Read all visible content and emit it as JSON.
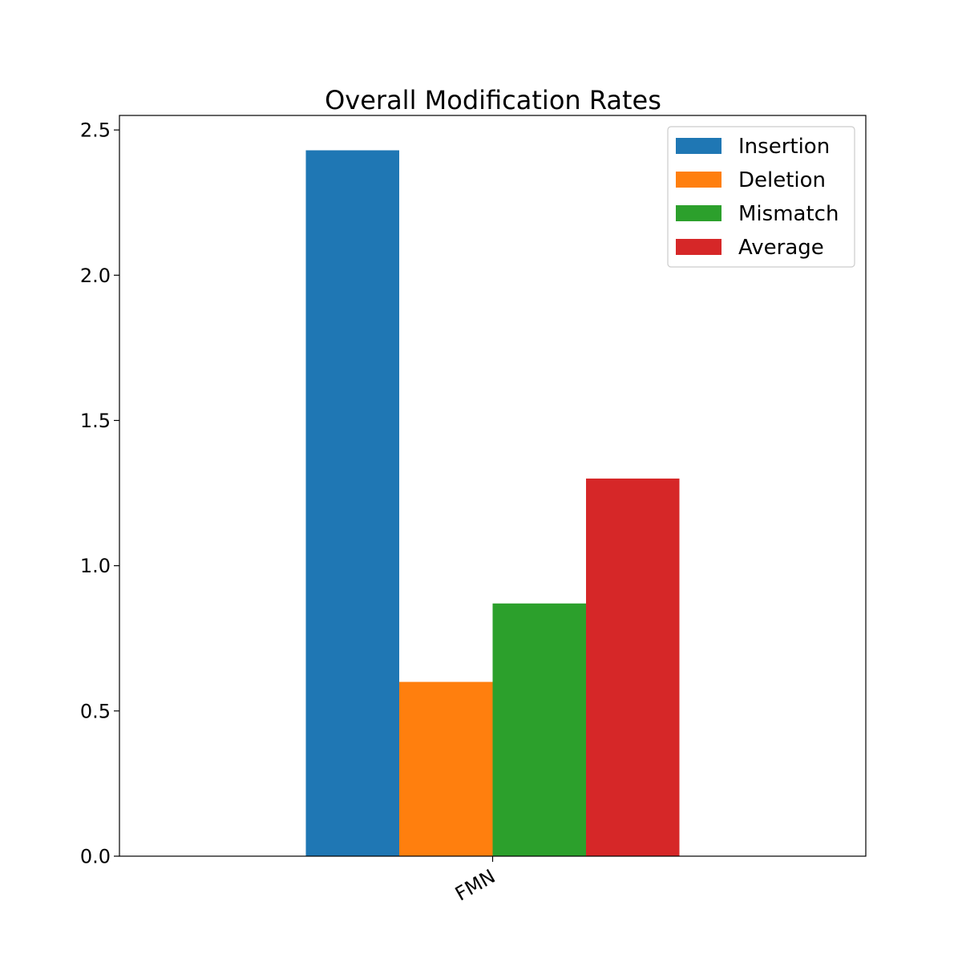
{
  "chart_data": {
    "type": "bar",
    "title": "Overall Modification Rates",
    "xlabel": "",
    "ylabel": "",
    "categories": [
      "FMN"
    ],
    "series": [
      {
        "name": "Insertion",
        "values": [
          2.43
        ],
        "color": "#1f77b4"
      },
      {
        "name": "Deletion",
        "values": [
          0.6
        ],
        "color": "#ff7f0e"
      },
      {
        "name": "Mismatch",
        "values": [
          0.87
        ],
        "color": "#2ca02c"
      },
      {
        "name": "Average",
        "values": [
          1.3
        ],
        "color": "#d62728"
      }
    ],
    "ylim": [
      0,
      2.55
    ],
    "yticks": [
      "0.0",
      "0.5",
      "1.0",
      "1.5",
      "2.0",
      "2.5"
    ],
    "grid": false,
    "legend_position": "top-right"
  }
}
